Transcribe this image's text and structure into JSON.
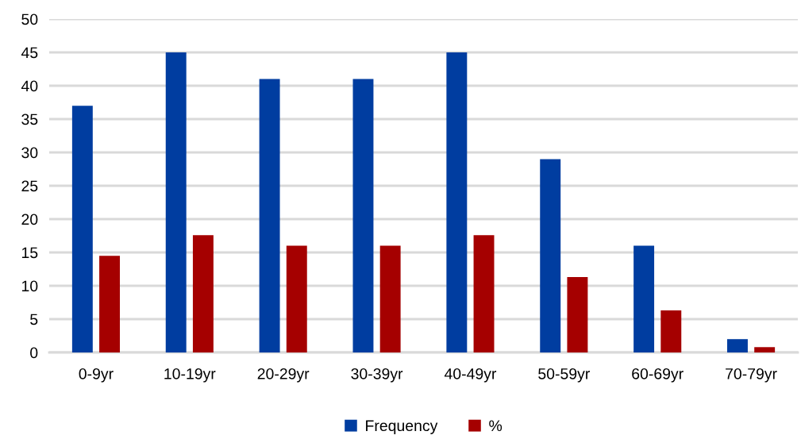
{
  "chart_data": {
    "type": "bar",
    "categories": [
      "0-9yr",
      "10-19yr",
      "20-29yr",
      "30-39yr",
      "40-49yr",
      "50-59yr",
      "60-69yr",
      "70-79yr"
    ],
    "series": [
      {
        "name": "Frequency",
        "color": "#003da0",
        "values": [
          37,
          45,
          41,
          41,
          45,
          29,
          16,
          2
        ]
      },
      {
        "name": "%",
        "color": "#a50000",
        "values": [
          14.5,
          17.6,
          16.0,
          16.0,
          17.6,
          11.3,
          6.3,
          0.8
        ]
      }
    ],
    "ylim": [
      0,
      50
    ],
    "yticks": [
      0,
      5,
      10,
      15,
      20,
      25,
      30,
      35,
      40,
      45,
      50
    ],
    "grid": "y",
    "legend": "bottom"
  }
}
